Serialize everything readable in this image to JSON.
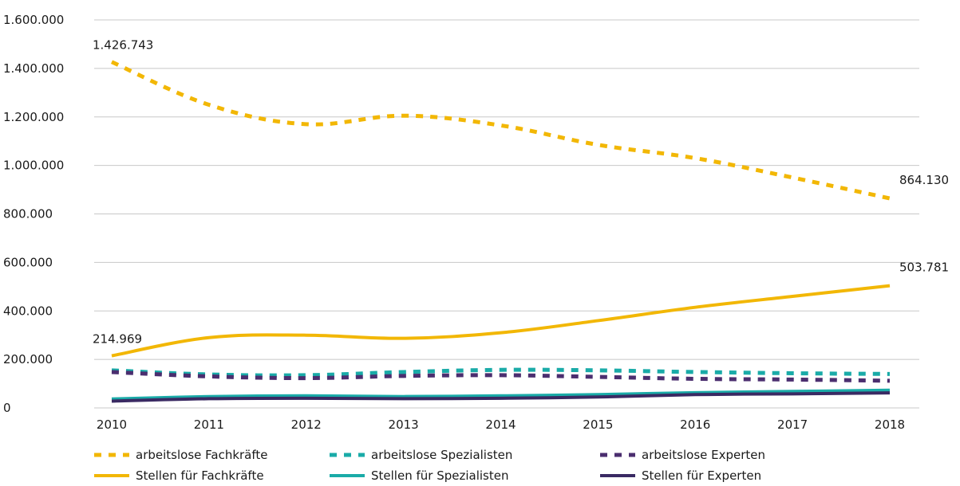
{
  "chart_data": {
    "type": "line",
    "title": "",
    "xlabel": "",
    "ylabel": "",
    "categories": [
      "2010",
      "2011",
      "2012",
      "2013",
      "2014",
      "2015",
      "2016",
      "2017",
      "2018"
    ],
    "y_ticks": [
      "0",
      "200.000",
      "400.000",
      "600.000",
      "800.000",
      "1.000.000",
      "1.200.000",
      "1.400.000",
      "1.600.000"
    ],
    "ylim": [
      0,
      1600000
    ],
    "grid": true,
    "legend_position": "bottom",
    "series": [
      {
        "name": "arbeitslose Fachkräfte",
        "style": "dashed",
        "color": "#f2b705",
        "values": [
          1426743,
          1250000,
          1170000,
          1205000,
          1165000,
          1085000,
          1030000,
          950000,
          864130
        ]
      },
      {
        "name": "arbeitslose Spezialisten",
        "style": "dashed",
        "color": "#1aaba8",
        "values": [
          155000,
          138000,
          135000,
          148000,
          157000,
          155000,
          148000,
          143000,
          140000
        ]
      },
      {
        "name": "arbeitslose Experten",
        "style": "dashed",
        "color": "#4b2e6f",
        "values": [
          148000,
          130000,
          123000,
          132000,
          135000,
          128000,
          120000,
          117000,
          112000
        ]
      },
      {
        "name": "Stellen für Fachkräfte",
        "style": "solid",
        "color": "#f2b705",
        "values": [
          214969,
          290000,
          300000,
          287000,
          310000,
          360000,
          415000,
          460000,
          503781
        ]
      },
      {
        "name": "Stellen für Spezialisten",
        "style": "solid",
        "color": "#1aaba8",
        "values": [
          37000,
          47000,
          50000,
          47000,
          50000,
          55000,
          63000,
          68000,
          73000
        ]
      },
      {
        "name": "Stellen für Experten",
        "style": "solid",
        "color": "#3a2a63",
        "values": [
          28000,
          38000,
          40000,
          38000,
          40000,
          45000,
          55000,
          58000,
          62000
        ]
      }
    ],
    "annotations": [
      {
        "series": 0,
        "index": 0,
        "text": "1.426.743"
      },
      {
        "series": 0,
        "index": 8,
        "text": "864.130"
      },
      {
        "series": 3,
        "index": 0,
        "text": "214.969"
      },
      {
        "series": 3,
        "index": 8,
        "text": "503.781"
      }
    ]
  }
}
